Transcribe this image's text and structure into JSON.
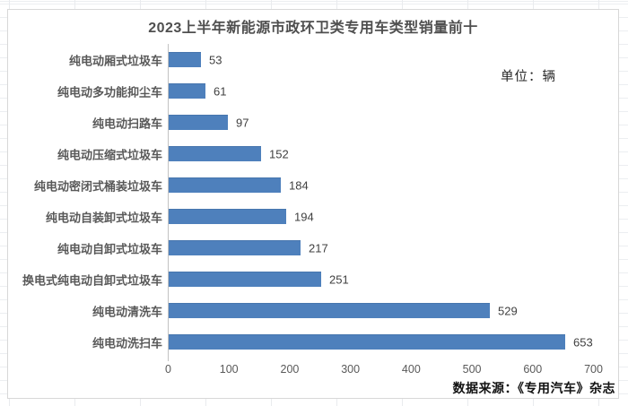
{
  "title": "2023上半年新能源市政环卫类专用车类型销量前十",
  "unit_label": "单位：辆",
  "source_label": "数据来源：《专用汽车》杂志",
  "chart_data": {
    "type": "bar",
    "orientation": "horizontal",
    "title": "2023上半年新能源市政环卫类专用车类型销量前十",
    "xlabel": "",
    "ylabel": "",
    "categories": [
      "纯电动厢式垃圾车",
      "纯电动多功能抑尘车",
      "纯电动扫路车",
      "纯电动压缩式垃圾车",
      "纯电动密闭式桶装垃圾车",
      "纯电动自装卸式垃圾车",
      "纯电动自卸式垃圾车",
      "换电式纯电动自卸式垃圾车",
      "纯电动清洗车",
      "纯电动洗扫车"
    ],
    "values": [
      53,
      61,
      97,
      152,
      184,
      194,
      217,
      251,
      529,
      653
    ],
    "xticks": [
      0,
      100,
      200,
      300,
      400,
      500,
      600,
      700
    ],
    "xlim": [
      0,
      700
    ],
    "grid": false,
    "value_labels": true,
    "legend": "none",
    "bar_color": "#4E80BC"
  }
}
